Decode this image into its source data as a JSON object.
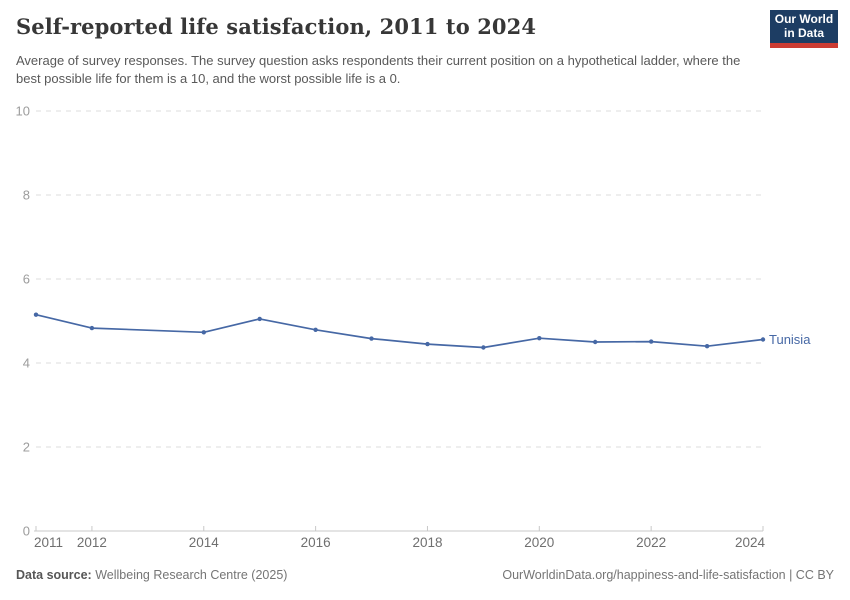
{
  "header": {
    "title": "Self-reported life satisfaction, 2011 to 2024",
    "subtitle": "Average of survey responses. The survey question asks respondents their current position on a hypothetical ladder, where the best possible life for them is a 10, and the worst possible life is a 0.",
    "logo": {
      "line1": "Our World",
      "line2": "in Data",
      "bg_color": "#1d3d63",
      "accent_color": "#cc3c33"
    }
  },
  "chart_data": {
    "type": "line",
    "title": "Self-reported life satisfaction, 2011 to 2024",
    "xlabel": "",
    "ylabel": "",
    "xlim": [
      2011,
      2024
    ],
    "ylim": [
      0,
      10
    ],
    "yticks": [
      0,
      2,
      4,
      6,
      8,
      10
    ],
    "xticks": [
      2011,
      2012,
      2014,
      2016,
      2018,
      2020,
      2022,
      2024
    ],
    "grid": "horizontal-dashed",
    "legend_position": "end-of-line-label",
    "series": [
      {
        "name": "Tunisia",
        "color": "#4668a5",
        "points": [
          [
            2011,
            5.15
          ],
          [
            2012,
            4.83
          ],
          [
            2014,
            4.73
          ],
          [
            2015,
            5.05
          ],
          [
            2016,
            4.79
          ],
          [
            2017,
            4.58
          ],
          [
            2018,
            4.45
          ],
          [
            2019,
            4.37
          ],
          [
            2020,
            4.59
          ],
          [
            2021,
            4.5
          ],
          [
            2022,
            4.51
          ],
          [
            2023,
            4.4
          ],
          [
            2024,
            4.56
          ]
        ]
      }
    ],
    "styles": {
      "grid_color": "#dedede",
      "axis_color": "#c8c8c8",
      "ytick_label_color": "#9c9c9c",
      "xtick_label_color": "#6f6f6f"
    }
  },
  "footer": {
    "datasource_label": "Data source:",
    "datasource_value": " Wellbeing Research Centre (2025)",
    "credit": "OurWorldinData.org/happiness-and-life-satisfaction | CC BY"
  }
}
